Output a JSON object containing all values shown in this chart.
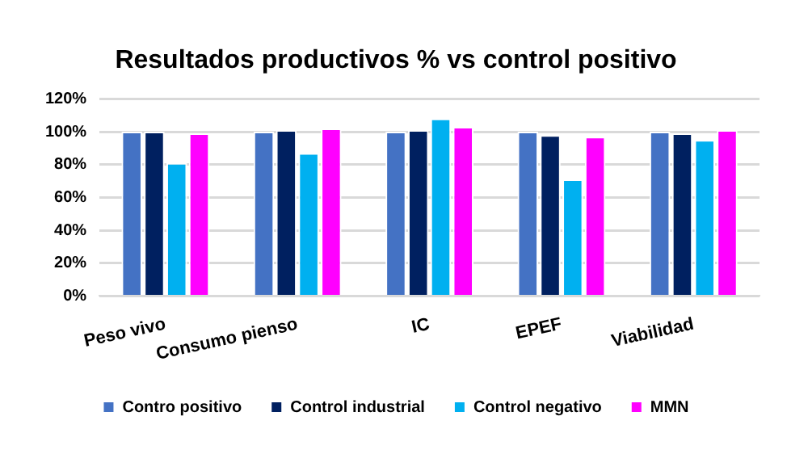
{
  "chart_data": {
    "type": "bar",
    "title": "Resultados productivos % vs control positivo",
    "categories": [
      "Peso vivo",
      "Consumo pienso",
      "IC",
      "EPEF",
      "Viabilidad"
    ],
    "series": [
      {
        "name": "Contro positivo",
        "color": "#4472c4",
        "values": [
          100,
          100,
          100,
          100,
          100
        ]
      },
      {
        "name": "Control industrial",
        "color": "#002060",
        "values": [
          100,
          101,
          101,
          98,
          99
        ]
      },
      {
        "name": "Control negativo",
        "color": "#00b0f0",
        "values": [
          81,
          87,
          108,
          71,
          95
        ]
      },
      {
        "name": "MMN",
        "color": "#ff00ff",
        "values": [
          99,
          102,
          103,
          97,
          101
        ]
      }
    ],
    "ylim": [
      0,
      120
    ],
    "yticks": [
      {
        "value": 0,
        "label": "0%"
      },
      {
        "value": 20,
        "label": "20%"
      },
      {
        "value": 40,
        "label": "40%"
      },
      {
        "value": 60,
        "label": "60%"
      },
      {
        "value": 80,
        "label": "80%"
      },
      {
        "value": 100,
        "label": "100%"
      },
      {
        "value": 120,
        "label": "120%"
      }
    ],
    "grid": "y",
    "legend": "bottom"
  }
}
